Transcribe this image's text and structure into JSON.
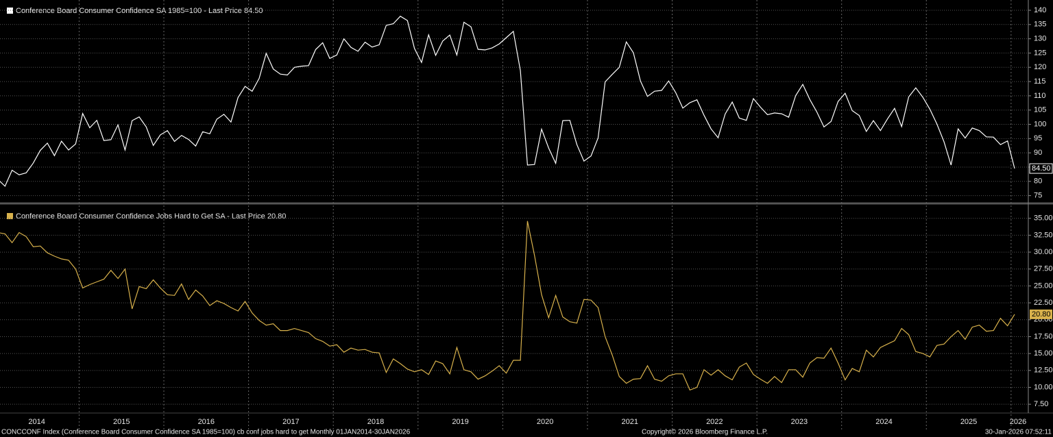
{
  "chart_data": [
    {
      "type": "line",
      "title": "Conference Board Consumer Confidence SA 1985=100 - Last Price 84.50",
      "color": "#ffffff",
      "last_value_label": "84.50",
      "ylim": [
        72.5,
        143.6
      ],
      "yticks": [
        75,
        80,
        85,
        90,
        95,
        100,
        105,
        110,
        115,
        120,
        125,
        130,
        135,
        140
      ],
      "grid": true,
      "values": [
        80.7,
        78.3,
        83.9,
        82.3,
        83.0,
        86.4,
        90.9,
        93.4,
        89.0,
        94.1,
        91.0,
        93.1,
        103.8,
        98.8,
        101.4,
        94.3,
        94.6,
        99.8,
        91.0,
        101.3,
        102.6,
        99.1,
        92.6,
        96.3,
        97.8,
        94.0,
        96.1,
        94.7,
        92.4,
        97.4,
        96.7,
        101.8,
        103.5,
        100.8,
        109.4,
        113.3,
        111.6,
        116.1,
        124.9,
        119.4,
        117.6,
        117.3,
        120.0,
        120.4,
        120.6,
        126.2,
        128.6,
        123.1,
        124.3,
        130.0,
        127.0,
        125.6,
        128.8,
        127.1,
        127.9,
        134.7,
        135.3,
        137.9,
        136.4,
        126.6,
        121.7,
        131.4,
        124.2,
        129.2,
        131.3,
        124.3,
        135.8,
        134.2,
        126.3,
        126.1,
        126.8,
        128.2,
        130.4,
        132.6,
        118.8,
        85.7,
        85.9,
        98.3,
        91.7,
        86.3,
        101.3,
        101.4,
        92.9,
        87.1,
        88.9,
        95.2,
        114.9,
        117.5,
        120.0,
        128.9,
        125.1,
        115.2,
        109.8,
        111.6,
        111.9,
        115.2,
        111.1,
        105.7,
        107.6,
        108.6,
        103.2,
        98.4,
        95.3,
        103.6,
        107.8,
        102.2,
        101.4,
        109.0,
        106.0,
        103.4,
        104.0,
        103.7,
        102.5,
        110.1,
        114.0,
        108.7,
        104.3,
        99.1,
        101.0,
        108.0,
        110.9,
        104.8,
        103.1,
        97.5,
        101.3,
        97.8,
        101.9,
        105.6,
        99.2,
        109.6,
        112.8,
        109.5,
        105.3,
        100.1,
        93.9,
        85.7,
        98.4,
        95.2,
        98.7,
        97.8,
        95.6,
        95.5,
        92.9,
        94.2,
        84.5
      ]
    },
    {
      "type": "line",
      "title": "Conference Board Consumer Confidence Jobs Hard to Get SA - Last Price 20.80",
      "color": "#d9b24c",
      "last_value_label": "20.80",
      "ylim": [
        6.2,
        37.1
      ],
      "yticks": [
        {
          "value": 7.5,
          "label": "7.50"
        },
        {
          "value": 10,
          "label": "10.00"
        },
        {
          "value": 12.5,
          "label": "12.50"
        },
        {
          "value": 15,
          "label": "15.00"
        },
        {
          "value": 17.5,
          "label": "17.50"
        },
        {
          "value": 20,
          "label": "20.00"
        },
        {
          "value": 22.5,
          "label": "22.50"
        },
        {
          "value": 25,
          "label": "25.00"
        },
        {
          "value": 27.5,
          "label": "27.50"
        },
        {
          "value": 30,
          "label": "30.00"
        },
        {
          "value": 32.5,
          "label": "32.50"
        },
        {
          "value": 35,
          "label": "35.00"
        }
      ],
      "grid": true,
      "categories": [
        "2014",
        null,
        null,
        null,
        null,
        null,
        null,
        null,
        null,
        null,
        null,
        null,
        "2015",
        null,
        null,
        null,
        null,
        null,
        null,
        null,
        null,
        null,
        null,
        null,
        "2016",
        null,
        null,
        null,
        null,
        null,
        null,
        null,
        null,
        null,
        null,
        null,
        "2017",
        null,
        null,
        null,
        null,
        null,
        null,
        null,
        null,
        null,
        null,
        null,
        "2018",
        null,
        null,
        null,
        null,
        null,
        null,
        null,
        null,
        null,
        null,
        null,
        "2019",
        null,
        null,
        null,
        null,
        null,
        null,
        null,
        null,
        null,
        null,
        null,
        "2020",
        null,
        null,
        null,
        null,
        null,
        null,
        null,
        null,
        null,
        null,
        null,
        "2021",
        null,
        null,
        null,
        null,
        null,
        null,
        null,
        null,
        null,
        null,
        null,
        "2022",
        null,
        null,
        null,
        null,
        null,
        null,
        null,
        null,
        null,
        null,
        null,
        "2023",
        null,
        null,
        null,
        null,
        null,
        null,
        null,
        null,
        null,
        null,
        null,
        "2024",
        null,
        null,
        null,
        null,
        null,
        null,
        null,
        null,
        null,
        null,
        null,
        "2025",
        null,
        null,
        null,
        null,
        null,
        null,
        null,
        null,
        null,
        null,
        null,
        "2026"
      ],
      "values": [
        32.9,
        32.7,
        31.4,
        32.9,
        32.3,
        30.8,
        30.9,
        29.9,
        29.4,
        29.0,
        28.8,
        27.5,
        24.7,
        25.2,
        25.6,
        26.0,
        27.3,
        26.1,
        27.5,
        21.6,
        24.9,
        24.6,
        25.9,
        24.7,
        23.7,
        23.6,
        25.3,
        23.0,
        24.4,
        23.5,
        22.1,
        22.8,
        22.4,
        21.8,
        21.3,
        22.7,
        21.0,
        19.9,
        19.2,
        19.4,
        18.4,
        18.4,
        18.7,
        18.4,
        18.1,
        17.2,
        16.8,
        16.1,
        16.3,
        15.2,
        15.8,
        15.5,
        15.6,
        15.2,
        15.1,
        12.2,
        14.2,
        13.5,
        12.7,
        12.3,
        12.6,
        11.9,
        13.9,
        13.5,
        12.0,
        15.9,
        12.6,
        12.3,
        11.2,
        11.7,
        12.4,
        13.2,
        12.1,
        14.0,
        14.0,
        34.6,
        29.5,
        23.7,
        20.3,
        23.6,
        20.4,
        19.7,
        19.5,
        23.0,
        22.9,
        21.8,
        17.5,
        14.8,
        11.6,
        10.6,
        11.2,
        11.3,
        13.2,
        11.2,
        10.9,
        11.7,
        12.0,
        12.0,
        9.6,
        10.0,
        12.6,
        11.8,
        12.6,
        11.7,
        11.1,
        13.0,
        13.6,
        11.9,
        11.2,
        10.6,
        11.6,
        10.7,
        12.6,
        12.6,
        11.5,
        13.6,
        14.4,
        14.3,
        15.8,
        13.6,
        11.1,
        12.8,
        12.3,
        15.5,
        14.5,
        15.9,
        16.4,
        16.9,
        18.7,
        17.8,
        15.3,
        15.0,
        14.5,
        16.2,
        16.4,
        17.5,
        18.4,
        17.1,
        18.9,
        19.2,
        18.3,
        18.4,
        20.2,
        19.1,
        20.8
      ]
    }
  ],
  "footer": {
    "left": "CONCCONF Index (Conference Board Consumer Confidence SA 1985=100) cb conf jobs hard to get Monthly 01JAN2014-30JAN2026",
    "center": "Copyright© 2026 Bloomberg Finance L.P.",
    "right": "30-Jan-2026 07:52:11"
  }
}
